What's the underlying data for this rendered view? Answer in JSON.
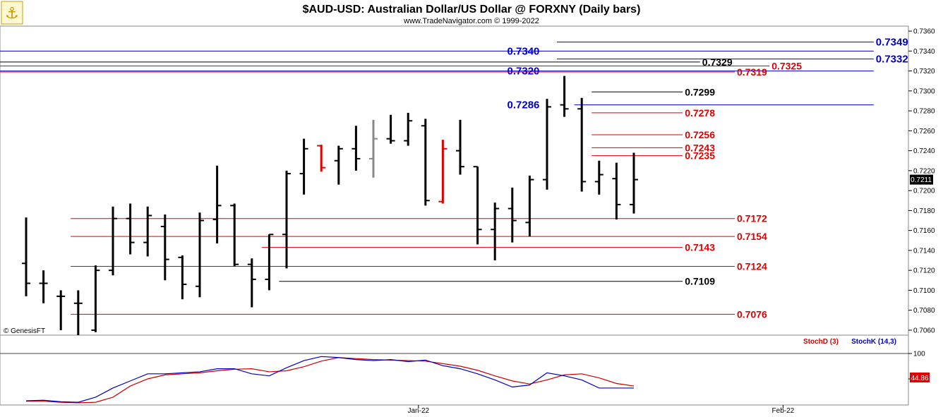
{
  "header": {
    "title": "$AUD-USD:  Australian Dollar/US Dollar @ FORXNY  (Daily bars)",
    "subtitle": "www.TradeNavigator.com © 1999-2022",
    "logo_icon": "anchor-logo-icon"
  },
  "watermark": "© GenesisFT",
  "colors": {
    "bar": "#000000",
    "bar_red": "#e00000",
    "bar_gray": "#888888",
    "level_red": "#e00000",
    "level_blue": "#0000c8",
    "level_black": "#000000",
    "stoch_d": "#d00000",
    "stoch_k": "#0000c0",
    "background": "#ffffff",
    "frame": "#888888",
    "last_price_bg": "#000000",
    "stoch_badge_bg": "#e00000"
  },
  "chart_data": [
    {
      "type": "ohlc",
      "name": "price",
      "last_price_label": "0.7211",
      "ylim": [
        0.7055,
        0.7365
      ],
      "yticks": [
        "0.7360",
        "0.7340",
        "0.7320",
        "0.7300",
        "0.7280",
        "0.7260",
        "0.7240",
        "0.7220",
        "0.7200",
        "0.7180",
        "0.7160",
        "0.7140",
        "0.7120",
        "0.7100",
        "0.7080",
        "0.7060"
      ],
      "xticks": [
        {
          "label": "Jan-22",
          "index": 23
        },
        {
          "label": "Feb-22",
          "index": 44
        }
      ],
      "bars": [
        {
          "o": 0.7127,
          "h": 0.7173,
          "l": 0.7094,
          "c": 0.7107,
          "color": "black"
        },
        {
          "o": 0.7107,
          "h": 0.712,
          "l": 0.7087,
          "c": 0.7107,
          "color": "black"
        },
        {
          "o": 0.7094,
          "h": 0.71,
          "l": 0.706,
          "c": 0.7094,
          "color": "black"
        },
        {
          "o": 0.7087,
          "h": 0.71,
          "l": 0.7055,
          "c": 0.7087,
          "color": "black"
        },
        {
          "o": 0.706,
          "h": 0.7125,
          "l": 0.7058,
          "c": 0.712,
          "color": "black"
        },
        {
          "o": 0.712,
          "h": 0.7184,
          "l": 0.7115,
          "c": 0.7172,
          "color": "black"
        },
        {
          "o": 0.7172,
          "h": 0.7187,
          "l": 0.7136,
          "c": 0.7148,
          "color": "black"
        },
        {
          "o": 0.7148,
          "h": 0.7184,
          "l": 0.7134,
          "c": 0.7175,
          "color": "black"
        },
        {
          "o": 0.7164,
          "h": 0.7176,
          "l": 0.711,
          "c": 0.7131,
          "color": "black"
        },
        {
          "o": 0.7133,
          "h": 0.7135,
          "l": 0.7091,
          "c": 0.7106,
          "color": "black"
        },
        {
          "o": 0.7104,
          "h": 0.7178,
          "l": 0.7093,
          "c": 0.717,
          "color": "black"
        },
        {
          "o": 0.7171,
          "h": 0.7225,
          "l": 0.7147,
          "c": 0.7185,
          "color": "black"
        },
        {
          "o": 0.7185,
          "h": 0.7187,
          "l": 0.7124,
          "c": 0.7126,
          "color": "black"
        },
        {
          "o": 0.7126,
          "h": 0.7132,
          "l": 0.7083,
          "c": 0.7111,
          "color": "black"
        },
        {
          "o": 0.7111,
          "h": 0.7156,
          "l": 0.71,
          "c": 0.7156,
          "color": "black"
        },
        {
          "o": 0.7156,
          "h": 0.722,
          "l": 0.7122,
          "c": 0.7217,
          "color": "black"
        },
        {
          "o": 0.7217,
          "h": 0.7252,
          "l": 0.7196,
          "c": 0.7242,
          "color": "black"
        },
        {
          "o": 0.7245,
          "h": 0.7246,
          "l": 0.7219,
          "c": 0.7223,
          "color": "red"
        },
        {
          "o": 0.723,
          "h": 0.7245,
          "l": 0.7206,
          "c": 0.7242,
          "color": "black"
        },
        {
          "o": 0.7242,
          "h": 0.7265,
          "l": 0.722,
          "c": 0.7232,
          "color": "black"
        },
        {
          "o": 0.7232,
          "h": 0.7271,
          "l": 0.7213,
          "c": 0.7252,
          "color": "gray"
        },
        {
          "o": 0.7252,
          "h": 0.7276,
          "l": 0.7247,
          "c": 0.725,
          "color": "black"
        },
        {
          "o": 0.725,
          "h": 0.7278,
          "l": 0.7245,
          "c": 0.727,
          "color": "black"
        },
        {
          "o": 0.7265,
          "h": 0.7272,
          "l": 0.7185,
          "c": 0.719,
          "color": "black"
        },
        {
          "o": 0.7189,
          "h": 0.7251,
          "l": 0.7187,
          "c": 0.7242,
          "color": "red"
        },
        {
          "o": 0.724,
          "h": 0.7271,
          "l": 0.7216,
          "c": 0.7224,
          "color": "black"
        },
        {
          "o": 0.7224,
          "h": 0.7224,
          "l": 0.7146,
          "c": 0.7161,
          "color": "black"
        },
        {
          "o": 0.7161,
          "h": 0.7188,
          "l": 0.713,
          "c": 0.7182,
          "color": "black"
        },
        {
          "o": 0.7182,
          "h": 0.7203,
          "l": 0.7148,
          "c": 0.717,
          "color": "black"
        },
        {
          "o": 0.7168,
          "h": 0.7215,
          "l": 0.7154,
          "c": 0.7211,
          "color": "black"
        },
        {
          "o": 0.7211,
          "h": 0.7292,
          "l": 0.7201,
          "c": 0.7284,
          "color": "black"
        },
        {
          "o": 0.7286,
          "h": 0.7315,
          "l": 0.7274,
          "c": 0.7282,
          "color": "black"
        },
        {
          "o": 0.7282,
          "h": 0.7293,
          "l": 0.7199,
          "c": 0.7209,
          "color": "black"
        },
        {
          "o": 0.7209,
          "h": 0.723,
          "l": 0.7196,
          "c": 0.7216,
          "color": "black"
        },
        {
          "o": 0.7212,
          "h": 0.7228,
          "l": 0.7171,
          "c": 0.7186,
          "color": "black"
        },
        {
          "o": 0.7186,
          "h": 0.7238,
          "l": 0.7177,
          "c": 0.7211,
          "color": "black"
        }
      ],
      "levels": [
        {
          "value": 0.7349,
          "label": "0.7349",
          "color": "blue",
          "from": 30,
          "to": 48,
          "label_at": "right",
          "big": true
        },
        {
          "value": 0.734,
          "label": "0.7340",
          "color": "blue",
          "from": -1,
          "to": 48,
          "label_at": "left",
          "label_index": 29,
          "big": true
        },
        {
          "value": 0.7332,
          "label": "0.7332",
          "color": "blue",
          "from": 30,
          "to": 48,
          "label_at": "right",
          "big": true
        },
        {
          "value": 0.7329,
          "label": "0.7329",
          "color": "black",
          "from": -1,
          "to": 38,
          "label_at": "right"
        },
        {
          "value": 0.7325,
          "label": "0.7325",
          "color": "red",
          "from": -1,
          "to": 42,
          "label_at": "right"
        },
        {
          "value": 0.732,
          "label": "0.7320",
          "color": "blue",
          "from": -1,
          "to": 48,
          "label_at": "left",
          "label_index": 29,
          "big": true
        },
        {
          "value": 0.7319,
          "label": "0.7319",
          "color": "red",
          "from": -1,
          "to": 40,
          "label_at": "right"
        },
        {
          "value": 0.7299,
          "label": "0.7299",
          "color": "black",
          "from": 32,
          "to": 37,
          "label_at": "right"
        },
        {
          "value": 0.7286,
          "label": "0.7286",
          "color": "blue",
          "from": 31,
          "to": 48,
          "label_at": "left",
          "label_index": 29,
          "big": true
        },
        {
          "value": 0.7278,
          "label": "0.7278",
          "color": "red",
          "from": 32,
          "to": 37,
          "label_at": "right"
        },
        {
          "value": 0.7256,
          "label": "0.7256",
          "color": "red",
          "from": 32,
          "to": 37,
          "label_at": "right"
        },
        {
          "value": 0.7243,
          "label": "0.7243",
          "color": "red",
          "from": 32,
          "to": 37,
          "label_at": "right"
        },
        {
          "value": 0.7235,
          "label": "0.7235",
          "color": "red",
          "from": 32,
          "to": 37,
          "label_at": "right"
        },
        {
          "value": 0.7172,
          "label": "0.7172",
          "color": "red",
          "from": 2,
          "to": 40,
          "label_at": "right"
        },
        {
          "value": 0.7154,
          "label": "0.7154",
          "color": "red",
          "from": 2,
          "to": 40,
          "label_at": "right"
        },
        {
          "value": 0.7143,
          "label": "0.7143",
          "color": "red",
          "from": 13,
          "to": 37,
          "label_at": "right"
        },
        {
          "value": 0.7124,
          "label": "0.7124",
          "color": "red",
          "from": 2,
          "to": 40,
          "label_at": "right"
        },
        {
          "value": 0.7109,
          "label": "0.7109",
          "color": "black",
          "from": 14,
          "to": 37,
          "label_at": "right"
        },
        {
          "value": 0.7076,
          "label": "0.7076",
          "color": "red",
          "from": 2,
          "to": 40,
          "label_at": "right"
        }
      ]
    },
    {
      "type": "line",
      "name": "stochastic",
      "ylim": [
        0,
        100
      ],
      "yticks": [
        "100",
        "50"
      ],
      "badge_value": "44.86",
      "series": [
        {
          "name": "StochD (3)",
          "color": "red",
          "values": [
            6,
            6,
            4,
            3,
            4,
            14,
            36,
            50,
            58,
            60,
            62,
            66,
            69,
            70,
            64,
            66,
            74,
            85,
            92,
            90,
            88,
            87,
            86,
            85,
            80,
            75,
            67,
            56,
            46,
            40,
            48,
            58,
            60,
            52,
            41,
            36
          ]
        },
        {
          "name": "StochK (14,3)",
          "color": "blue",
          "values": [
            7,
            8,
            5,
            4,
            14,
            32,
            46,
            60,
            60,
            62,
            64,
            70,
            70,
            60,
            56,
            72,
            86,
            94,
            92,
            88,
            86,
            88,
            84,
            87,
            76,
            70,
            60,
            48,
            34,
            38,
            62,
            56,
            48,
            32,
            32,
            32
          ]
        }
      ]
    }
  ]
}
